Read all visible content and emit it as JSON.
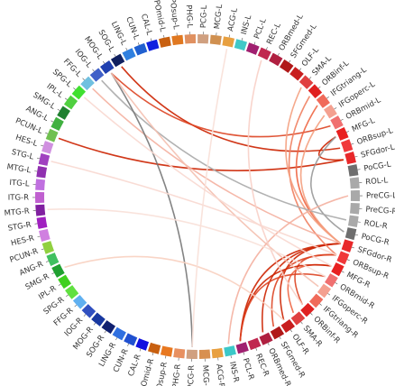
{
  "regions": [
    {
      "label": "PreCG-R",
      "color": "#a9a9a9"
    },
    {
      "label": "ROL-R",
      "color": "#a9a9a9"
    },
    {
      "label": "PoCG-R",
      "color": "#6e6e6e"
    },
    {
      "label": "SFGdor-R",
      "color": "#e8282a"
    },
    {
      "label": "ORBsup-R",
      "color": "#f0383a"
    },
    {
      "label": "MFG-R",
      "color": "#e82020"
    },
    {
      "label": "ORBmid-R",
      "color": "#f07070"
    },
    {
      "label": "IFGoperc-R",
      "color": "#f4a090"
    },
    {
      "label": "IFGtriang-R",
      "color": "#f06a5a"
    },
    {
      "label": "ORBinf-R",
      "color": "#e02020"
    },
    {
      "label": "SMA-R",
      "color": "#e04040"
    },
    {
      "label": "OLF-R",
      "color": "#c81e1e"
    },
    {
      "label": "SFGmed-R",
      "color": "#b01818"
    },
    {
      "label": "ORBmed-R",
      "color": "#b02040"
    },
    {
      "label": "REC-R",
      "color": "#c02850"
    },
    {
      "label": "PCL-R",
      "color": "#a02070"
    },
    {
      "label": "INS-R",
      "color": "#3cc8c8"
    },
    {
      "label": "ACG-R",
      "color": "#e8a040"
    },
    {
      "label": "MCG-R",
      "color": "#d89050"
    },
    {
      "label": "PCG-R",
      "color": "#d0a080"
    },
    {
      "label": "PHG-R",
      "color": "#e89060"
    },
    {
      "label": "TPOsup-R",
      "color": "#e87820"
    },
    {
      "label": "TPOmid-R",
      "color": "#c86010"
    },
    {
      "label": "CAL-R",
      "color": "#1010e0"
    },
    {
      "label": "CUN-R",
      "color": "#2050d0"
    },
    {
      "label": "LING-R",
      "color": "#3070e0"
    },
    {
      "label": "SOG-R",
      "color": "#102070"
    },
    {
      "label": "MOG-R",
      "color": "#1838a0"
    },
    {
      "label": "IOG-R",
      "color": "#3050c0"
    },
    {
      "label": "FFG-R",
      "color": "#60b0f0"
    },
    {
      "label": "SPG-R",
      "color": "#60e040"
    },
    {
      "label": "IPL-R",
      "color": "#40d020"
    },
    {
      "label": "SMG-R",
      "color": "#20a030"
    },
    {
      "label": "ANG-R",
      "color": "#40c060"
    },
    {
      "label": "PCUN-R",
      "color": "#90d040"
    },
    {
      "label": "HES-R",
      "color": "#d080e0"
    },
    {
      "label": "STG-R",
      "color": "#a020c0"
    },
    {
      "label": "MTG-R",
      "color": "#8020a0"
    },
    {
      "label": "ITG-R",
      "color": "#c060d0"
    },
    {
      "label": "ITG-L",
      "color": "#c070e0"
    },
    {
      "label": "MTG-L",
      "color": "#9030b0"
    },
    {
      "label": "STG-L",
      "color": "#a040c0"
    },
    {
      "label": "HES-L",
      "color": "#d090e0"
    },
    {
      "label": "PCUN-L",
      "color": "#70c050"
    },
    {
      "label": "ANG-L",
      "color": "#40b040"
    },
    {
      "label": "SMG-L",
      "color": "#208030"
    },
    {
      "label": "IPL-L",
      "color": "#50d040"
    },
    {
      "label": "SPG-L",
      "color": "#40e030"
    },
    {
      "label": "FFG-L",
      "color": "#70c0e0"
    },
    {
      "label": "IOG-L",
      "color": "#4060c8"
    },
    {
      "label": "MOG-L",
      "color": "#2040b0"
    },
    {
      "label": "SOG-L",
      "color": "#102060"
    },
    {
      "label": "LING-L",
      "color": "#3080e0"
    },
    {
      "label": "CUN-L",
      "color": "#2060d0"
    },
    {
      "label": "CAL-L",
      "color": "#1020e0"
    },
    {
      "label": "TPOmid-L",
      "color": "#c86010"
    },
    {
      "label": "TPOsup-L",
      "color": "#e07820"
    },
    {
      "label": "PHG-L",
      "color": "#e09060"
    },
    {
      "label": "PCG-L",
      "color": "#d0a080"
    },
    {
      "label": "MCG-L",
      "color": "#d09050"
    },
    {
      "label": "ACG-L",
      "color": "#e8a040"
    },
    {
      "label": "INS-L",
      "color": "#40c8c8"
    },
    {
      "label": "PCL-L",
      "color": "#a02070"
    },
    {
      "label": "REC-L",
      "color": "#c02850"
    },
    {
      "label": "ORBmed-L",
      "color": "#b02040"
    },
    {
      "label": "SFGmed-L",
      "color": "#b01818"
    },
    {
      "label": "OLF-L",
      "color": "#c81e1e"
    },
    {
      "label": "SMA-L",
      "color": "#e04040"
    },
    {
      "label": "ORBinf-L",
      "color": "#e02020"
    },
    {
      "label": "IFGtriang-L",
      "color": "#f06a5a"
    },
    {
      "label": "IFGoperc-L",
      "color": "#f4a090"
    },
    {
      "label": "ORBmid-L",
      "color": "#f07070"
    },
    {
      "label": "MFG-L",
      "color": "#e82020"
    },
    {
      "label": "ORBsup-L",
      "color": "#f0383a"
    },
    {
      "label": "SFGdor-L",
      "color": "#e8282a"
    },
    {
      "label": "PoCG-L",
      "color": "#6e6e6e"
    },
    {
      "label": "ROL-L",
      "color": "#a9a9a9"
    },
    {
      "label": "PreCG-L",
      "color": "#a9a9a9"
    }
  ],
  "links": [
    {
      "from": "SFGdor-R",
      "to": "OLF-R",
      "color": "#cc2200"
    },
    {
      "from": "SFGdor-R",
      "to": "ORBmed-R",
      "color": "#cc2200"
    },
    {
      "from": "ORBsup-R",
      "to": "ORBinf-R",
      "color": "#dd4422"
    },
    {
      "from": "ORBsup-R",
      "to": "SFGmed-R",
      "color": "#dd4422"
    },
    {
      "from": "MFG-R",
      "to": "SMA-R",
      "color": "#ee6644"
    },
    {
      "from": "MFG-R",
      "to": "PCL-R",
      "color": "#cc2200"
    },
    {
      "from": "SFGdor-R",
      "to": "PCL-R",
      "color": "#cc2200"
    },
    {
      "from": "ORBmid-R",
      "to": "PCL-R",
      "color": "#dd4422"
    },
    {
      "from": "SFGdor-L",
      "to": "MFG-L",
      "color": "#cc2200"
    },
    {
      "from": "SFGdor-L",
      "to": "PCUN-L",
      "color": "#cc2200"
    },
    {
      "from": "ORBsup-L",
      "to": "SOG-L",
      "color": "#cc2200"
    },
    {
      "from": "ORBmid-L",
      "to": "MOG-L",
      "color": "#dd4422"
    },
    {
      "from": "IFGtriang-L",
      "to": "SFGdor-R",
      "color": "#ee6644"
    },
    {
      "from": "ORBinf-L",
      "to": "ORBsup-R",
      "color": "#f08060"
    },
    {
      "from": "IFGoperc-L",
      "to": "SFGdor-R",
      "color": "#f4a080"
    },
    {
      "from": "SMA-L",
      "to": "SFGdor-R",
      "color": "#f4a080"
    },
    {
      "from": "SFGdor-R",
      "to": "FFG-L",
      "color": "#f4b0a0"
    },
    {
      "from": "MFG-L",
      "to": "PoCG-R",
      "color": "#999999"
    },
    {
      "from": "ROL-R",
      "to": "IOG-L",
      "color": "#aaaaaa"
    },
    {
      "from": "PCG-R",
      "to": "MOG-L",
      "color": "#777777"
    },
    {
      "from": "PreCG-L",
      "to": "INS-R",
      "color": "#f4b0a0"
    },
    {
      "from": "IFGoperc-R",
      "to": "MOG-L",
      "color": "#f4c0b0"
    },
    {
      "from": "OLF-R",
      "to": "SMG-R",
      "color": "#f8d0c0"
    },
    {
      "from": "ORBsup-R",
      "to": "STG-L",
      "color": "#f8d8d0"
    },
    {
      "from": "REC-L",
      "to": "ORBinf-R",
      "color": "#f8d0c8"
    },
    {
      "from": "ORBmid-R",
      "to": "MTG-R",
      "color": "#f8e0d8"
    },
    {
      "from": "ACG-L",
      "to": "PCG-R",
      "color": "#f8e0d8"
    },
    {
      "from": "MFG-R",
      "to": "SPG-L",
      "color": "#f8d8d0"
    }
  ]
}
